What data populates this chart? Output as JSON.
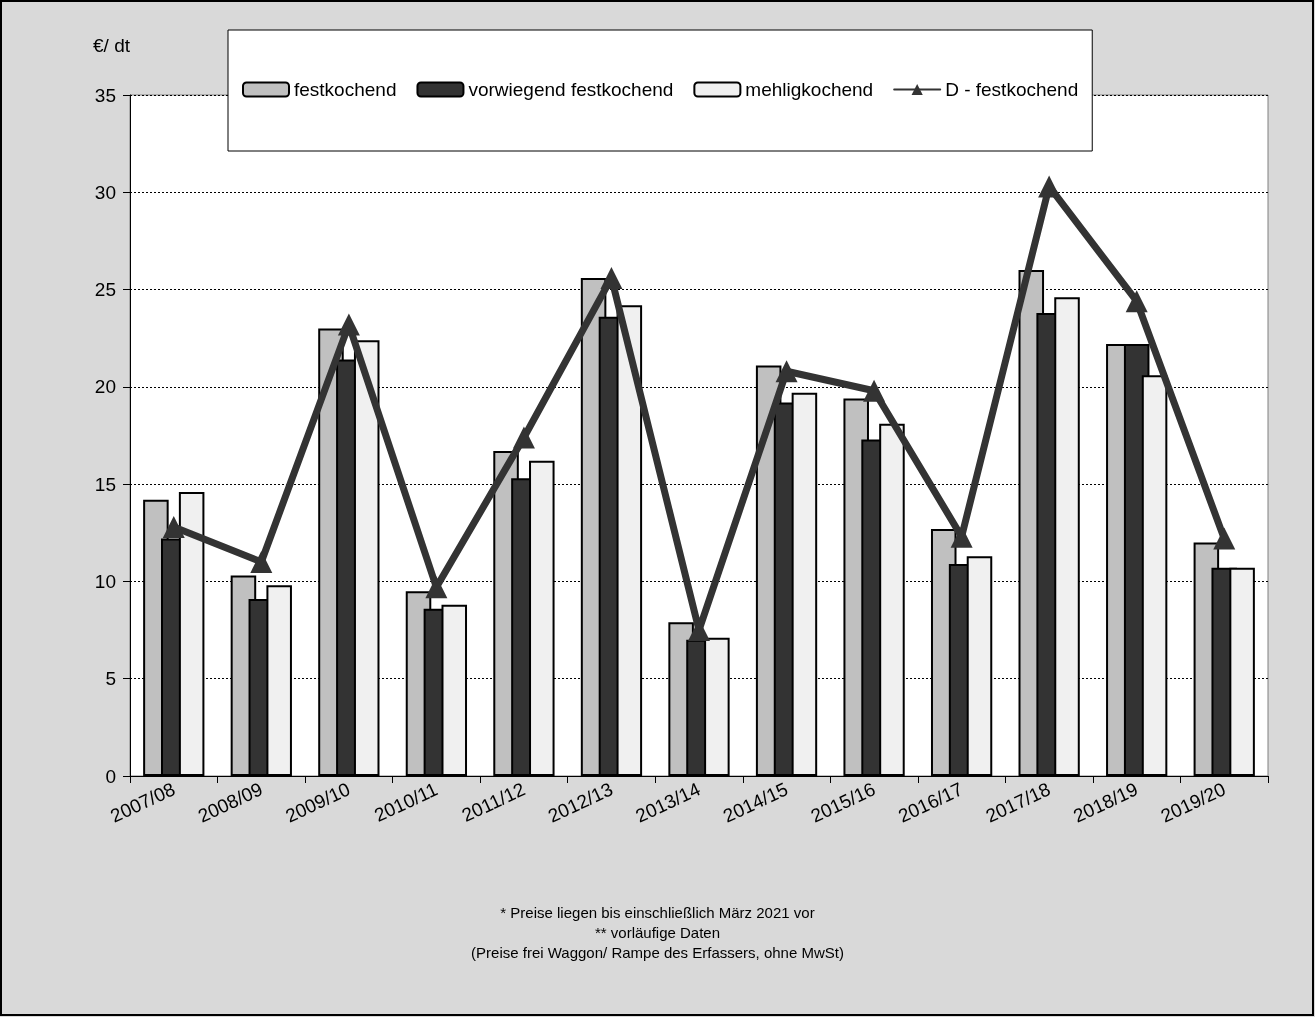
{
  "chart_data": {
    "type": "bar",
    "ylabel": "€/ dt",
    "categories": [
      "2007/08",
      "2008/09",
      "2009/10",
      "2010/11",
      "2011/12",
      "2012/13",
      "2013/14",
      "2014/15",
      "2015/16",
      "2016/17",
      "2017/18",
      "2018/19",
      "2019/20"
    ],
    "series": [
      {
        "name": "festkochend",
        "color": "#c0c0c0",
        "values": [
          14.2,
          10.3,
          23.0,
          9.5,
          16.7,
          25.6,
          7.9,
          21.1,
          19.4,
          12.7,
          26.0,
          22.2,
          12.0
        ]
      },
      {
        "name": "vorwiegend festkochend",
        "color": "#333333",
        "values": [
          12.2,
          9.1,
          21.4,
          8.6,
          15.3,
          23.6,
          7.0,
          19.2,
          17.3,
          10.9,
          23.8,
          22.2,
          10.7
        ]
      },
      {
        "name": "mehligkochend",
        "color": "#f0f0f0",
        "values": [
          14.6,
          9.8,
          22.4,
          8.8,
          16.2,
          24.2,
          7.1,
          19.7,
          18.1,
          11.3,
          24.6,
          20.6,
          10.7
        ]
      },
      {
        "name": "D - festkochend",
        "type": "line",
        "color": "#333333",
        "marker": "triangle",
        "line_style": "solid",
        "values": [
          12.8,
          11.0,
          23.2,
          9.7,
          17.4,
          25.6,
          7.5,
          20.8,
          19.8,
          12.3,
          30.3,
          24.4,
          12.2
        ]
      }
    ],
    "ylim": [
      0,
      35
    ],
    "yticks": [
      0,
      5,
      10,
      15,
      20,
      25,
      30,
      35
    ],
    "grid": "y",
    "legend": "top",
    "annotations": [
      "* Preise liegen bis einschließlich März 2021 vor",
      "** vorläufige Daten",
      "(Preise frei Waggon/ Rampe des Erfassers, ohne MwSt)"
    ]
  }
}
